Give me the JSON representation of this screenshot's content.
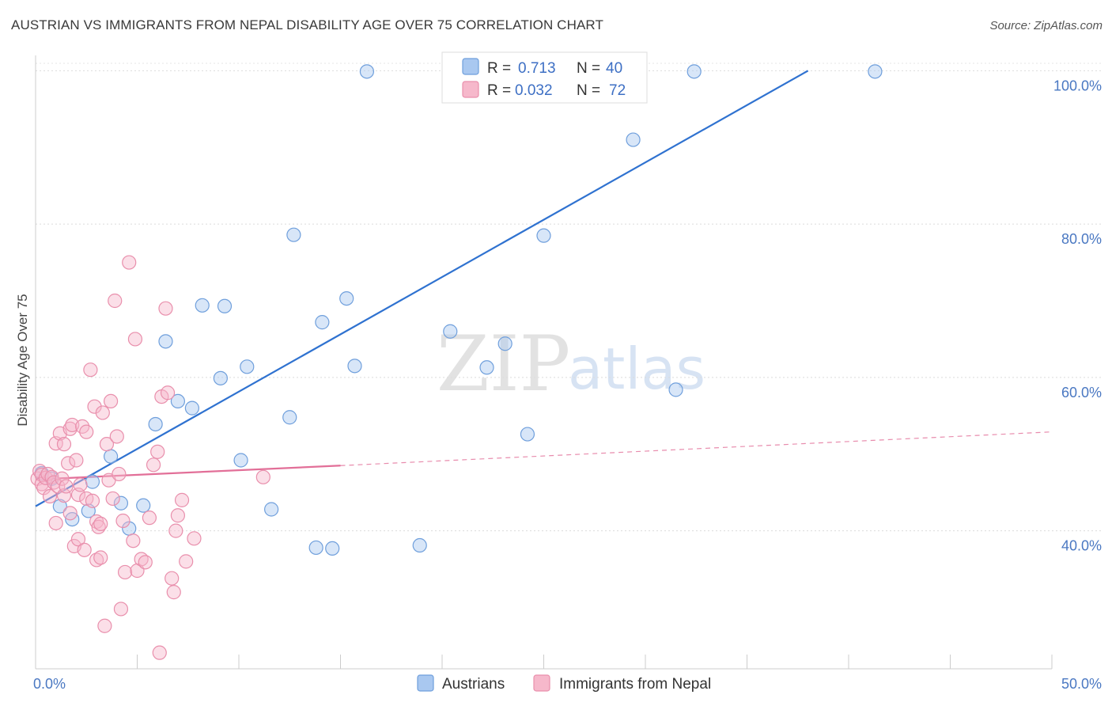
{
  "header": {
    "title": "AUSTRIAN VS IMMIGRANTS FROM NEPAL DISABILITY AGE OVER 75 CORRELATION CHART",
    "source": "Source: ZipAtlas.com"
  },
  "watermark": {
    "zip": "ZIP",
    "atlas": "atlas"
  },
  "legend_top": {
    "rows": [
      {
        "r_label": "R =",
        "r_value": "0.713",
        "n_label": "N =",
        "n_value": "40",
        "color": "#a9c8f0"
      },
      {
        "r_label": "R =",
        "r_value": "0.032",
        "n_label": "N =",
        "n_value": "72",
        "color": "#f6b8cb"
      }
    ]
  },
  "legend_bottom": {
    "items": [
      {
        "label": "Austrians",
        "color": "#a9c8f0"
      },
      {
        "label": "Immigrants from Nepal",
        "color": "#f6b8cb"
      }
    ]
  },
  "chart_data": {
    "type": "scatter",
    "title": "AUSTRIAN VS IMMIGRANTS FROM NEPAL DISABILITY AGE OVER 75 CORRELATION CHART",
    "xlabel": "",
    "ylabel": "Disability Age Over 75",
    "xlim": [
      0,
      50
    ],
    "ylim": [
      22,
      102
    ],
    "x_tick_labels": [
      "0.0%",
      "50.0%"
    ],
    "y_ticks": [
      40,
      60,
      80,
      100
    ],
    "y_tick_labels": [
      "40.0%",
      "60.0%",
      "80.0%",
      "100.0%"
    ],
    "grid": true,
    "legend_position": "top-center",
    "series": [
      {
        "name": "Austrians",
        "color": "#a9c8f0",
        "stroke": "#6f9fdc",
        "trend_color": "#2f72d0",
        "trend": {
          "x": [
            0,
            38
          ],
          "y": [
            43.2,
            100
          ]
        },
        "x": [
          0.3,
          0.8,
          1.2,
          1.8,
          2.6,
          2.8,
          3.7,
          4.2,
          4.6,
          5.3,
          5.9,
          6.4,
          7.0,
          7.7,
          8.2,
          9.1,
          9.3,
          10.1,
          10.4,
          11.6,
          12.5,
          12.7,
          13.8,
          14.1,
          14.6,
          15.3,
          15.7,
          16.3,
          18.9,
          20.4,
          21.0,
          22.2,
          23.1,
          24.2,
          25.0,
          26.6,
          29.4,
          31.5,
          32.4,
          41.3
        ],
        "y": [
          47.5,
          46.8,
          43.2,
          41.5,
          42.6,
          46.4,
          49.7,
          43.6,
          40.3,
          43.3,
          53.9,
          64.7,
          56.9,
          56.0,
          69.4,
          59.9,
          69.3,
          49.2,
          61.4,
          42.8,
          54.8,
          78.6,
          37.8,
          67.2,
          37.7,
          70.3,
          61.5,
          99.9,
          38.1,
          66.0,
          99.9,
          61.3,
          64.4,
          52.6,
          78.5,
          99.9,
          91.0,
          58.4,
          99.9,
          99.9
        ]
      },
      {
        "name": "Immigrants from Nepal",
        "color": "#f6b8cb",
        "stroke": "#e98fac",
        "trend_color": "#e26f98",
        "trend": {
          "x": [
            0,
            15
          ],
          "y": [
            46.7,
            48.5
          ]
        },
        "trend_dashed": {
          "x": [
            15,
            50
          ],
          "y": [
            48.5,
            52.9
          ]
        },
        "x": [
          0.1,
          0.2,
          0.3,
          0.3,
          0.4,
          0.5,
          0.6,
          0.7,
          0.8,
          0.9,
          1.0,
          1.0,
          1.1,
          1.2,
          1.3,
          1.4,
          1.4,
          1.5,
          1.6,
          1.7,
          1.7,
          1.8,
          1.9,
          2.0,
          2.1,
          2.1,
          2.2,
          2.3,
          2.4,
          2.5,
          2.5,
          2.7,
          2.8,
          2.9,
          3.0,
          3.0,
          3.1,
          3.2,
          3.2,
          3.3,
          3.4,
          3.5,
          3.6,
          3.7,
          3.8,
          3.9,
          4.0,
          4.1,
          4.2,
          4.3,
          4.4,
          4.6,
          4.8,
          4.9,
          5.0,
          5.2,
          5.4,
          5.6,
          5.8,
          6.0,
          6.1,
          6.2,
          6.4,
          6.5,
          6.7,
          6.8,
          6.9,
          7.0,
          7.2,
          7.4,
          7.8,
          11.2
        ],
        "y": [
          46.8,
          47.8,
          47.3,
          46.1,
          45.6,
          46.9,
          47.4,
          44.5,
          47.0,
          46.3,
          41.0,
          51.4,
          45.8,
          52.7,
          46.8,
          51.3,
          44.6,
          45.8,
          48.8,
          53.3,
          42.3,
          53.8,
          38.0,
          49.2,
          38.9,
          44.7,
          46.0,
          53.6,
          37.5,
          44.2,
          52.9,
          61.0,
          43.9,
          56.2,
          36.2,
          41.2,
          40.5,
          36.5,
          40.9,
          55.4,
          27.6,
          51.3,
          46.6,
          56.9,
          44.2,
          70.0,
          52.3,
          47.4,
          29.8,
          41.3,
          34.6,
          75.0,
          38.7,
          65.0,
          34.8,
          36.3,
          35.9,
          41.7,
          48.6,
          50.3,
          24.1,
          57.5,
          69.0,
          58.0,
          33.8,
          32.0,
          40.0,
          42.0,
          44.0,
          36.0,
          39.0,
          47.0
        ]
      }
    ]
  }
}
